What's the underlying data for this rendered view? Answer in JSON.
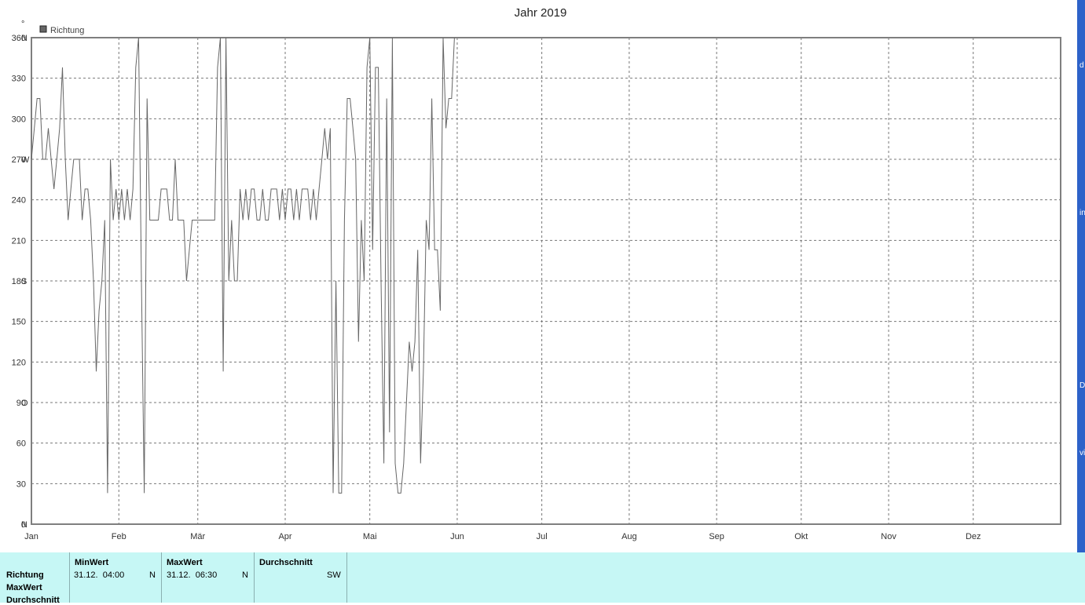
{
  "chart_data": {
    "type": "line",
    "title": "Jahr 2019",
    "legend": {
      "label": "Richtung",
      "color": "#666666",
      "placement": "top-left"
    },
    "top_left_mark": "°",
    "y_ticks": [
      {
        "value": 0,
        "label": "0",
        "dir": "N"
      },
      {
        "value": 30,
        "label": "30",
        "dir": ""
      },
      {
        "value": 60,
        "label": "60",
        "dir": ""
      },
      {
        "value": 90,
        "label": "90",
        "dir": "O"
      },
      {
        "value": 120,
        "label": "120",
        "dir": ""
      },
      {
        "value": 150,
        "label": "150",
        "dir": ""
      },
      {
        "value": 180,
        "label": "180",
        "dir": "S"
      },
      {
        "value": 210,
        "label": "210",
        "dir": ""
      },
      {
        "value": 240,
        "label": "240",
        "dir": ""
      },
      {
        "value": 270,
        "label": "270",
        "dir": "W"
      },
      {
        "value": 300,
        "label": "300",
        "dir": ""
      },
      {
        "value": 330,
        "label": "330",
        "dir": ""
      },
      {
        "value": 360,
        "label": "360",
        "dir": "N"
      }
    ],
    "ylim": [
      0,
      360
    ],
    "xlim": [
      "2019-01-01",
      "2019-12-31"
    ],
    "x_ticks": [
      {
        "label": "Jan",
        "date": "2019-01-01"
      },
      {
        "label": "Feb",
        "date": "2019-02-01"
      },
      {
        "label": "Mär",
        "date": "2019-03-01"
      },
      {
        "label": "Apr",
        "date": "2019-04-01"
      },
      {
        "label": "Mai",
        "date": "2019-05-01"
      },
      {
        "label": "Jun",
        "date": "2019-06-01"
      },
      {
        "label": "Jul",
        "date": "2019-07-01"
      },
      {
        "label": "Aug",
        "date": "2019-08-01"
      },
      {
        "label": "Sep",
        "date": "2019-09-01"
      },
      {
        "label": "Okt",
        "date": "2019-10-01"
      },
      {
        "label": "Nov",
        "date": "2019-11-01"
      },
      {
        "label": "Dez",
        "date": "2019-12-01"
      }
    ],
    "grid": true,
    "series": [
      {
        "name": "Richtung",
        "color": "#666666",
        "points": [
          [
            "2019-01-01",
            270
          ],
          [
            "2019-01-03",
            315
          ],
          [
            "2019-01-04",
            315
          ],
          [
            "2019-01-05",
            270
          ],
          [
            "2019-01-06",
            270
          ],
          [
            "2019-01-07",
            293
          ],
          [
            "2019-01-08",
            270
          ],
          [
            "2019-01-09",
            248
          ],
          [
            "2019-01-10",
            270
          ],
          [
            "2019-01-11",
            293
          ],
          [
            "2019-01-12",
            338
          ],
          [
            "2019-01-13",
            270
          ],
          [
            "2019-01-14",
            225
          ],
          [
            "2019-01-15",
            248
          ],
          [
            "2019-01-16",
            270
          ],
          [
            "2019-01-17",
            270
          ],
          [
            "2019-01-18",
            270
          ],
          [
            "2019-01-19",
            225
          ],
          [
            "2019-01-20",
            248
          ],
          [
            "2019-01-21",
            248
          ],
          [
            "2019-01-22",
            225
          ],
          [
            "2019-01-23",
            180
          ],
          [
            "2019-01-24",
            113
          ],
          [
            "2019-01-25",
            158
          ],
          [
            "2019-01-26",
            180
          ],
          [
            "2019-01-27",
            225
          ],
          [
            "2019-01-28",
            23
          ],
          [
            "2019-01-29",
            270
          ],
          [
            "2019-01-30",
            225
          ],
          [
            "2019-01-31",
            248
          ],
          [
            "2019-02-01",
            225
          ],
          [
            "2019-02-02",
            248
          ],
          [
            "2019-02-03",
            225
          ],
          [
            "2019-02-04",
            248
          ],
          [
            "2019-02-05",
            225
          ],
          [
            "2019-02-06",
            248
          ],
          [
            "2019-02-07",
            338
          ],
          [
            "2019-02-08",
            360
          ],
          [
            "2019-02-09",
            180
          ],
          [
            "2019-02-10",
            23
          ],
          [
            "2019-02-11",
            315
          ],
          [
            "2019-02-12",
            225
          ],
          [
            "2019-02-13",
            225
          ],
          [
            "2019-02-14",
            225
          ],
          [
            "2019-02-15",
            225
          ],
          [
            "2019-02-16",
            248
          ],
          [
            "2019-02-17",
            248
          ],
          [
            "2019-02-18",
            248
          ],
          [
            "2019-02-19",
            225
          ],
          [
            "2019-02-20",
            225
          ],
          [
            "2019-02-21",
            270
          ],
          [
            "2019-02-22",
            225
          ],
          [
            "2019-02-23",
            225
          ],
          [
            "2019-02-24",
            225
          ],
          [
            "2019-02-25",
            180
          ],
          [
            "2019-02-26",
            203
          ],
          [
            "2019-02-27",
            225
          ],
          [
            "2019-02-28",
            225
          ],
          [
            "2019-03-01",
            225
          ],
          [
            "2019-03-02",
            225
          ],
          [
            "2019-03-03",
            225
          ],
          [
            "2019-03-04",
            225
          ],
          [
            "2019-03-05",
            225
          ],
          [
            "2019-03-06",
            225
          ],
          [
            "2019-03-07",
            225
          ],
          [
            "2019-03-08",
            338
          ],
          [
            "2019-03-09",
            360
          ],
          [
            "2019-03-10",
            113
          ],
          [
            "2019-03-11",
            360
          ],
          [
            "2019-03-12",
            180
          ],
          [
            "2019-03-13",
            225
          ],
          [
            "2019-03-14",
            180
          ],
          [
            "2019-03-15",
            180
          ],
          [
            "2019-03-16",
            248
          ],
          [
            "2019-03-17",
            225
          ],
          [
            "2019-03-18",
            248
          ],
          [
            "2019-03-19",
            225
          ],
          [
            "2019-03-20",
            248
          ],
          [
            "2019-03-21",
            248
          ],
          [
            "2019-03-22",
            225
          ],
          [
            "2019-03-23",
            225
          ],
          [
            "2019-03-24",
            248
          ],
          [
            "2019-03-25",
            225
          ],
          [
            "2019-03-26",
            225
          ],
          [
            "2019-03-27",
            248
          ],
          [
            "2019-03-28",
            248
          ],
          [
            "2019-03-29",
            248
          ],
          [
            "2019-03-30",
            225
          ],
          [
            "2019-03-31",
            248
          ],
          [
            "2019-04-01",
            225
          ],
          [
            "2019-04-02",
            248
          ],
          [
            "2019-04-03",
            248
          ],
          [
            "2019-04-04",
            225
          ],
          [
            "2019-04-05",
            248
          ],
          [
            "2019-04-06",
            225
          ],
          [
            "2019-04-07",
            248
          ],
          [
            "2019-04-08",
            248
          ],
          [
            "2019-04-09",
            248
          ],
          [
            "2019-04-10",
            225
          ],
          [
            "2019-04-11",
            248
          ],
          [
            "2019-04-12",
            225
          ],
          [
            "2019-04-13",
            248
          ],
          [
            "2019-04-14",
            270
          ],
          [
            "2019-04-15",
            293
          ],
          [
            "2019-04-16",
            270
          ],
          [
            "2019-04-17",
            293
          ],
          [
            "2019-04-18",
            23
          ],
          [
            "2019-04-19",
            180
          ],
          [
            "2019-04-20",
            23
          ],
          [
            "2019-04-21",
            23
          ],
          [
            "2019-04-22",
            225
          ],
          [
            "2019-04-23",
            315
          ],
          [
            "2019-04-24",
            315
          ],
          [
            "2019-04-25",
            293
          ],
          [
            "2019-04-26",
            270
          ],
          [
            "2019-04-27",
            135
          ],
          [
            "2019-04-28",
            225
          ],
          [
            "2019-04-29",
            180
          ],
          [
            "2019-04-30",
            338
          ],
          [
            "2019-05-01",
            360
          ],
          [
            "2019-05-02",
            203
          ],
          [
            "2019-05-03",
            338
          ],
          [
            "2019-05-04",
            338
          ],
          [
            "2019-05-05",
            180
          ],
          [
            "2019-05-06",
            45
          ],
          [
            "2019-05-07",
            315
          ],
          [
            "2019-05-08",
            68
          ],
          [
            "2019-05-09",
            360
          ],
          [
            "2019-05-10",
            45
          ],
          [
            "2019-05-11",
            23
          ],
          [
            "2019-05-12",
            23
          ],
          [
            "2019-05-13",
            45
          ],
          [
            "2019-05-14",
            90
          ],
          [
            "2019-05-15",
            135
          ],
          [
            "2019-05-16",
            113
          ],
          [
            "2019-05-17",
            135
          ],
          [
            "2019-05-18",
            203
          ],
          [
            "2019-05-19",
            45
          ],
          [
            "2019-05-20",
            113
          ],
          [
            "2019-05-21",
            225
          ],
          [
            "2019-05-22",
            203
          ],
          [
            "2019-05-23",
            315
          ],
          [
            "2019-05-24",
            203
          ],
          [
            "2019-05-25",
            203
          ],
          [
            "2019-05-26",
            158
          ],
          [
            "2019-05-27",
            360
          ],
          [
            "2019-05-28",
            293
          ],
          [
            "2019-05-29",
            315
          ],
          [
            "2019-05-30",
            315
          ],
          [
            "2019-05-31",
            360
          ]
        ]
      }
    ]
  },
  "stats_table": {
    "row_labels": [
      "Richtung",
      "MaxWert",
      "Durchschnitt"
    ],
    "columns": [
      {
        "header": "MinWert",
        "datetime": "31.12.  04:00",
        "value": "N"
      },
      {
        "header": "MaxWert",
        "datetime": "31.12.  06:30",
        "value": "N"
      },
      {
        "header": "Durchschnitt",
        "datetime": "",
        "value": "SW"
      }
    ]
  },
  "side_strip_letters": [
    "d",
    "in",
    "D",
    "vi"
  ],
  "colors": {
    "panel_bg": "#c6f7f5",
    "grid": "#777777",
    "line": "#666666",
    "frame": "#7f7f7f"
  }
}
